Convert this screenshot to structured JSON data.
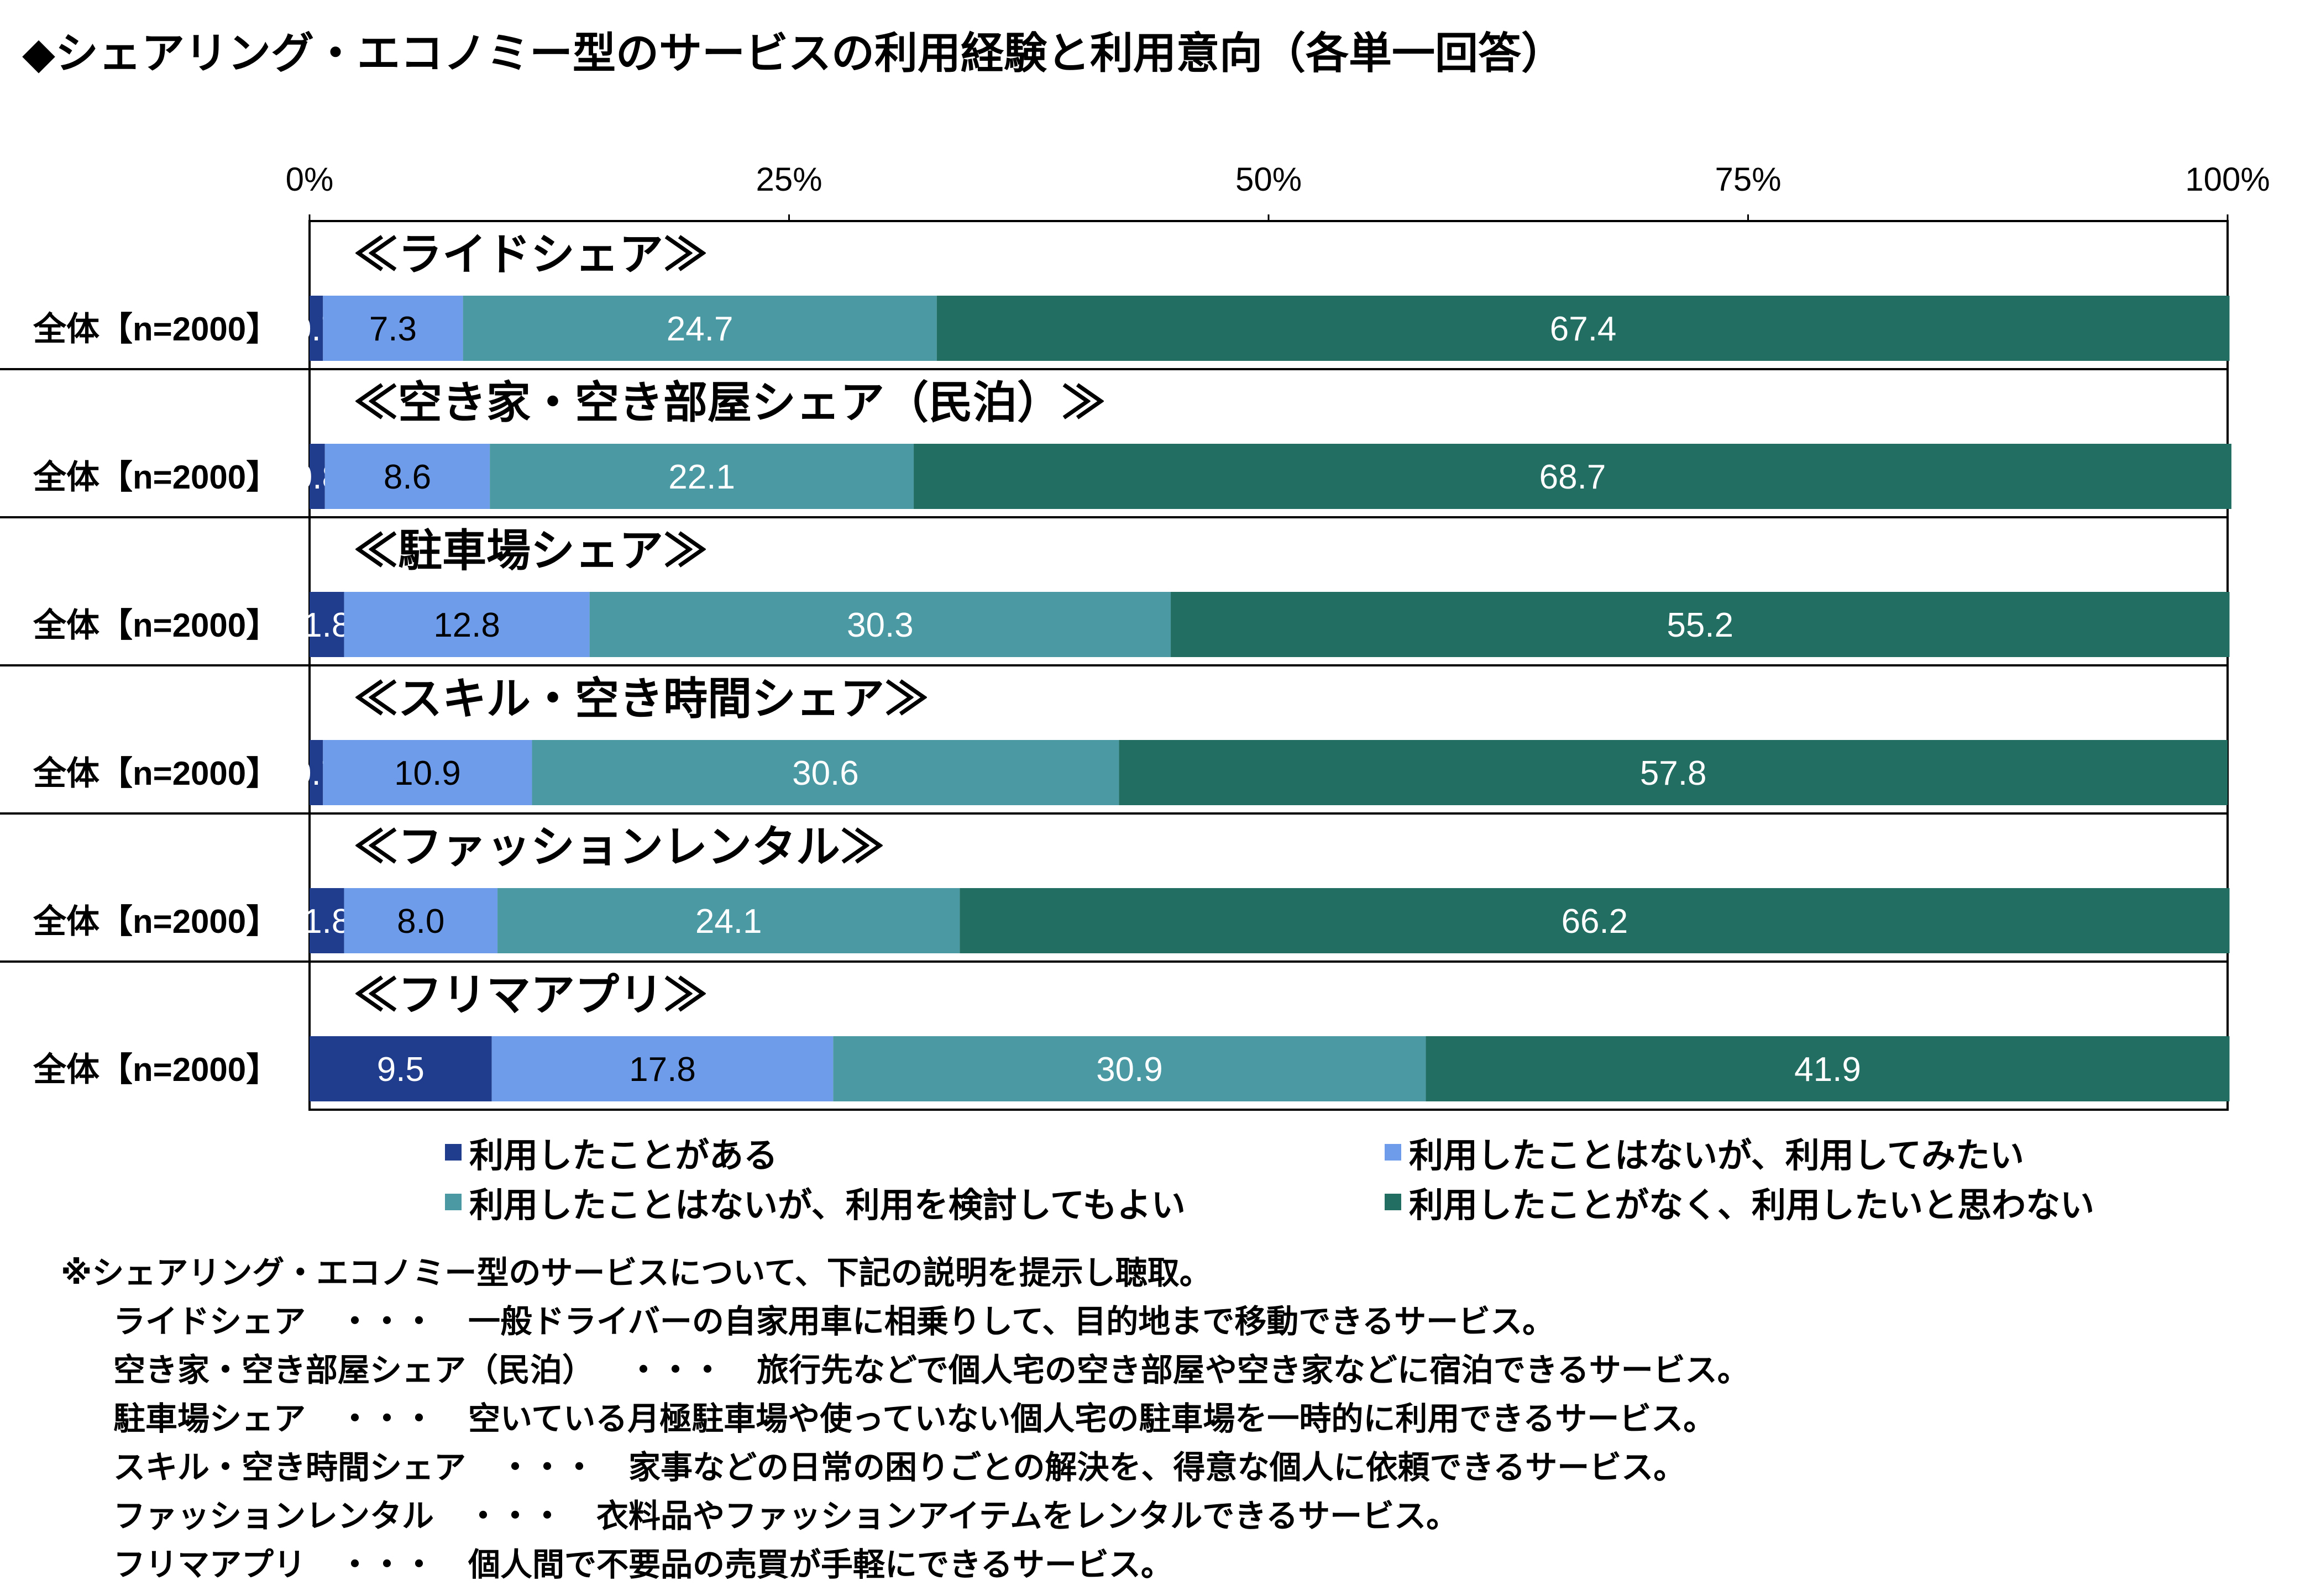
{
  "title": "◆シェアリング・エコノミー型のサービスの利用経験と利用意向（各単一回答）",
  "chart_data": {
    "type": "bar",
    "orientation": "horizontal",
    "stacked": "percent",
    "x_ticks": [
      "0%",
      "25%",
      "50%",
      "75%",
      "100%"
    ],
    "xlim": [
      0,
      100
    ],
    "groups": [
      {
        "heading": "≪ライドシェア≫",
        "row_label": "全体【n=2000】",
        "values": [
          0.7,
          7.3,
          24.7,
          67.4
        ]
      },
      {
        "heading": "≪空き家・空き部屋シェア（民泊）≫",
        "row_label": "全体【n=2000】",
        "values": [
          0.8,
          8.6,
          22.1,
          68.7
        ]
      },
      {
        "heading": "≪駐車場シェア≫",
        "row_label": "全体【n=2000】",
        "values": [
          1.8,
          12.8,
          30.3,
          55.2
        ]
      },
      {
        "heading": "≪スキル・空き時間シェア≫",
        "row_label": "全体【n=2000】",
        "values": [
          0.7,
          10.9,
          30.6,
          57.8
        ]
      },
      {
        "heading": "≪ファッションレンタル≫",
        "row_label": "全体【n=2000】",
        "values": [
          1.8,
          8.0,
          24.1,
          66.2
        ]
      },
      {
        "heading": "≪フリマアプリ≫",
        "row_label": "全体【n=2000】",
        "values": [
          9.5,
          17.8,
          30.9,
          41.9
        ]
      }
    ],
    "series": [
      {
        "name": "利用したことがある",
        "color": "#1F3D8C"
      },
      {
        "name": "利用したことはないが、利用してみたい",
        "color": "#6E9BEA"
      },
      {
        "name": "利用したことはないが、利用を検討してもよい",
        "color": "#4A99A3"
      },
      {
        "name": "利用したことがなく、利用したいと思わない",
        "color": "#226E62"
      }
    ],
    "grid": true,
    "legend_position": "bottom"
  },
  "notes": {
    "heading": "※シェアリング・エコノミー型のサービスについて、下記の説明を提示し聴取。",
    "items": [
      {
        "name": "ライドシェア",
        "sep": "・・・",
        "desc": "一般ドライバーの自家用車に相乗りして、目的地まで移動できるサービス。"
      },
      {
        "name": "空き家・空き部屋シェア（民泊）",
        "sep": "・・・",
        "desc": "旅行先などで個人宅の空き部屋や空き家などに宿泊できるサービス。"
      },
      {
        "name": "駐車場シェア",
        "sep": "・・・",
        "desc": "空いている月極駐車場や使っていない個人宅の駐車場を一時的に利用できるサービス。"
      },
      {
        "name": "スキル・空き時間シェア",
        "sep": "・・・",
        "desc": "家事などの日常の困りごとの解決を、得意な個人に依頼できるサービス。"
      },
      {
        "name": "ファッションレンタル",
        "sep": "・・・",
        "desc": "衣料品やファッションアイテムをレンタルできるサービス。"
      },
      {
        "name": "フリマアプリ",
        "sep": "・・・",
        "desc": "個人間で不要品の売買が手軽にできるサービス。"
      }
    ]
  }
}
